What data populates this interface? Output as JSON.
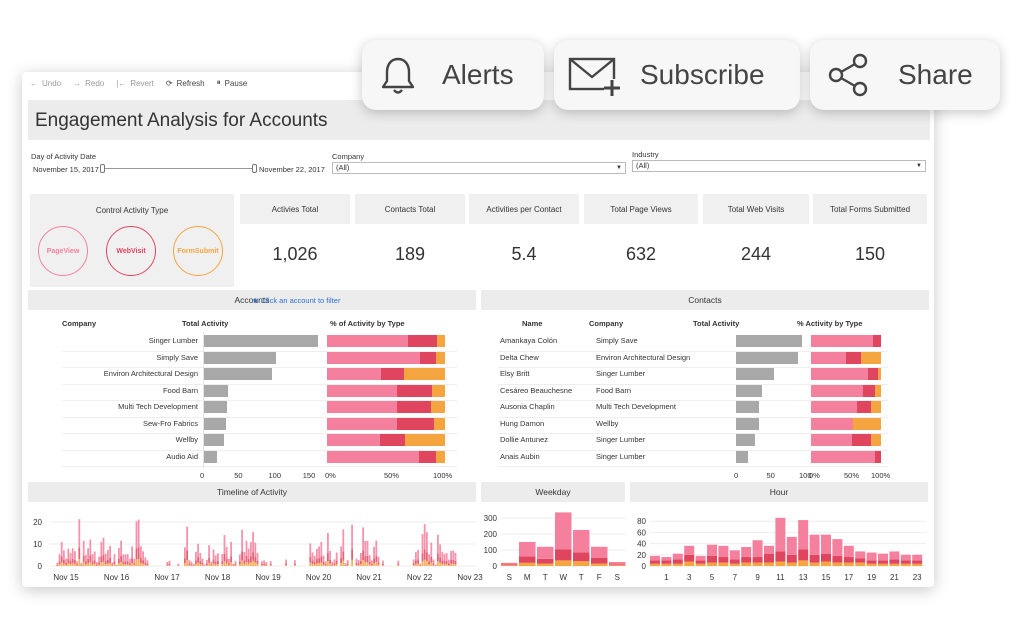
{
  "toolbar": {
    "undo": "Undo",
    "redo": "Redo",
    "revert": "Revert",
    "refresh": "Refresh",
    "pause": "Pause"
  },
  "overlay": {
    "alerts": "Alerts",
    "subscribe": "Subscribe",
    "share": "Share"
  },
  "title": "Engagement Analysis for Accounts",
  "filters": {
    "date_label": "Day of Activity Date",
    "date_start": "November 15, 2017",
    "date_end": "November 22, 2017",
    "company_label": "Company",
    "company_value": "(All)",
    "industry_label": "Industry",
    "industry_value": "(All)"
  },
  "control": {
    "title": "Control Activity Type",
    "types": [
      {
        "label": "PageView",
        "color": "#f4809e"
      },
      {
        "label": "WebVisit",
        "color": "#e0455f"
      },
      {
        "label": "FormSubmit",
        "color": "#f5a540"
      }
    ]
  },
  "kpis": [
    {
      "label": "Activies Total",
      "value": "1,026"
    },
    {
      "label": "Contacts Total",
      "value": "189"
    },
    {
      "label": "Activities per Contact",
      "value": "5.4"
    },
    {
      "label": "Total Page Views",
      "value": "632"
    },
    {
      "label": "Total Web Visits",
      "value": "244"
    },
    {
      "label": "Total Forms Submitted",
      "value": "150"
    }
  ],
  "accounts": {
    "title": "Accounts",
    "filter_hint": "Click an account to filter",
    "col_company": "Company",
    "col_total": "Total Activity",
    "col_pct": "% of Activity by Type",
    "rows": [
      {
        "company": "Singer Lumber",
        "total": 168,
        "pv": 0.69,
        "wv": 0.24,
        "fs": 0.07
      },
      {
        "company": "Simply Save",
        "total": 106,
        "pv": 0.79,
        "wv": 0.13,
        "fs": 0.08
      },
      {
        "company": "Environ Architectural Design",
        "total": 101,
        "pv": 0.46,
        "wv": 0.19,
        "fs": 0.35
      },
      {
        "company": "Food Barn",
        "total": 37,
        "pv": 0.59,
        "wv": 0.3,
        "fs": 0.11
      },
      {
        "company": "Multi Tech Development",
        "total": 35,
        "pv": 0.59,
        "wv": 0.29,
        "fs": 0.12
      },
      {
        "company": "Sew-Fro Fabrics",
        "total": 33,
        "pv": 0.59,
        "wv": 0.32,
        "fs": 0.09
      },
      {
        "company": "Wellby",
        "total": 31,
        "pv": 0.45,
        "wv": 0.21,
        "fs": 0.34
      },
      {
        "company": "Audio Aid",
        "total": 20,
        "pv": 0.78,
        "wv": 0.14,
        "fs": 0.08
      }
    ],
    "axis_total": [
      "0",
      "50",
      "100",
      "150"
    ],
    "axis_pct": [
      "0%",
      "50%",
      "100%"
    ]
  },
  "contacts": {
    "title": "Contacts",
    "col_name": "Name",
    "col_company": "Company",
    "col_total": "Total Activity",
    "col_pct": "% Activity by Type",
    "rows": [
      {
        "name": "Amankaya Colón",
        "company": "Simply Save",
        "total": 101,
        "pv": 0.89,
        "wv": 0.11,
        "fs": 0.0
      },
      {
        "name": "Delta Chew",
        "company": "Environ Architectural Design",
        "total": 96,
        "pv": 0.5,
        "wv": 0.22,
        "fs": 0.28
      },
      {
        "name": "Elsy Britt",
        "company": "Singer Lumber",
        "total": 59,
        "pv": 0.82,
        "wv": 0.14,
        "fs": 0.04
      },
      {
        "name": "Cesáreo Beauchesne",
        "company": "Food Barn",
        "total": 40,
        "pv": 0.74,
        "wv": 0.17,
        "fs": 0.09
      },
      {
        "name": "Ausonia Chaplin",
        "company": "Multi Tech Development",
        "total": 36,
        "pv": 0.65,
        "wv": 0.2,
        "fs": 0.15
      },
      {
        "name": "Hung Damon",
        "company": "Wellby",
        "total": 35,
        "pv": 0.6,
        "wv": 0.0,
        "fs": 0.4
      },
      {
        "name": "Dollie Antunez",
        "company": "Singer Lumber",
        "total": 29,
        "pv": 0.58,
        "wv": 0.28,
        "fs": 0.14
      },
      {
        "name": "Anais Aubin",
        "company": "Singer Lumber",
        "total": 18,
        "pv": 0.92,
        "wv": 0.08,
        "fs": 0.0
      }
    ],
    "axis_total": [
      "0",
      "50",
      "100"
    ],
    "axis_pct": [
      "0%",
      "50%",
      "100%"
    ]
  },
  "timeline": {
    "title": "Timeline of Activity",
    "y_ticks": [
      "0",
      "10",
      "20"
    ],
    "x_ticks": [
      "Nov 15",
      "Nov 16",
      "Nov 17",
      "Nov 18",
      "Nov 19",
      "Nov 20",
      "Nov 21",
      "Nov 22",
      "Nov 23"
    ]
  },
  "weekday": {
    "title": "Weekday",
    "y_ticks": [
      "0",
      "100",
      "200",
      "300"
    ],
    "x_ticks": [
      "S",
      "M",
      "T",
      "W",
      "T",
      "F",
      "S"
    ]
  },
  "hour": {
    "title": "Hour",
    "y_ticks": [
      "0",
      "20",
      "40",
      "60",
      "80"
    ],
    "x_ticks": [
      "1",
      "3",
      "5",
      "7",
      "9",
      "11",
      "13",
      "15",
      "17",
      "19",
      "21",
      "23"
    ]
  },
  "chart_data": [
    {
      "type": "bar",
      "title": "Weekday",
      "categories": [
        "S",
        "M",
        "T",
        "W",
        "T",
        "F",
        "S"
      ],
      "ylim": [
        0,
        350
      ],
      "series": [
        {
          "name": "PageView",
          "values": [
            10,
            90,
            75,
            230,
            140,
            70,
            15
          ]
        },
        {
          "name": "WebVisit",
          "values": [
            5,
            40,
            30,
            70,
            55,
            35,
            5
          ]
        },
        {
          "name": "FormSubmit",
          "values": [
            5,
            20,
            15,
            35,
            30,
            15,
            5
          ]
        }
      ]
    },
    {
      "type": "bar",
      "title": "Hour",
      "categories": [
        "0",
        "1",
        "2",
        "3",
        "4",
        "5",
        "6",
        "7",
        "8",
        "9",
        "10",
        "11",
        "12",
        "13",
        "14",
        "15",
        "16",
        "17",
        "18",
        "19",
        "20",
        "21",
        "22",
        "23"
      ],
      "ylim": [
        0,
        100
      ],
      "series": [
        {
          "name": "PageView",
          "values": [
            8,
            6,
            10,
            16,
            8,
            20,
            20,
            16,
            18,
            30,
            14,
            60,
            32,
            52,
            36,
            34,
            30,
            20,
            12,
            14,
            12,
            14,
            10,
            10
          ]
        },
        {
          "name": "WebVisit",
          "values": [
            6,
            6,
            8,
            12,
            6,
            12,
            10,
            8,
            10,
            10,
            16,
            18,
            14,
            20,
            14,
            14,
            12,
            10,
            8,
            6,
            6,
            8,
            6,
            6
          ]
        },
        {
          "name": "FormSubmit",
          "values": [
            4,
            4,
            4,
            8,
            4,
            6,
            6,
            4,
            6,
            6,
            6,
            8,
            6,
            10,
            6,
            8,
            6,
            6,
            6,
            4,
            4,
            4,
            4,
            4
          ]
        }
      ]
    }
  ]
}
